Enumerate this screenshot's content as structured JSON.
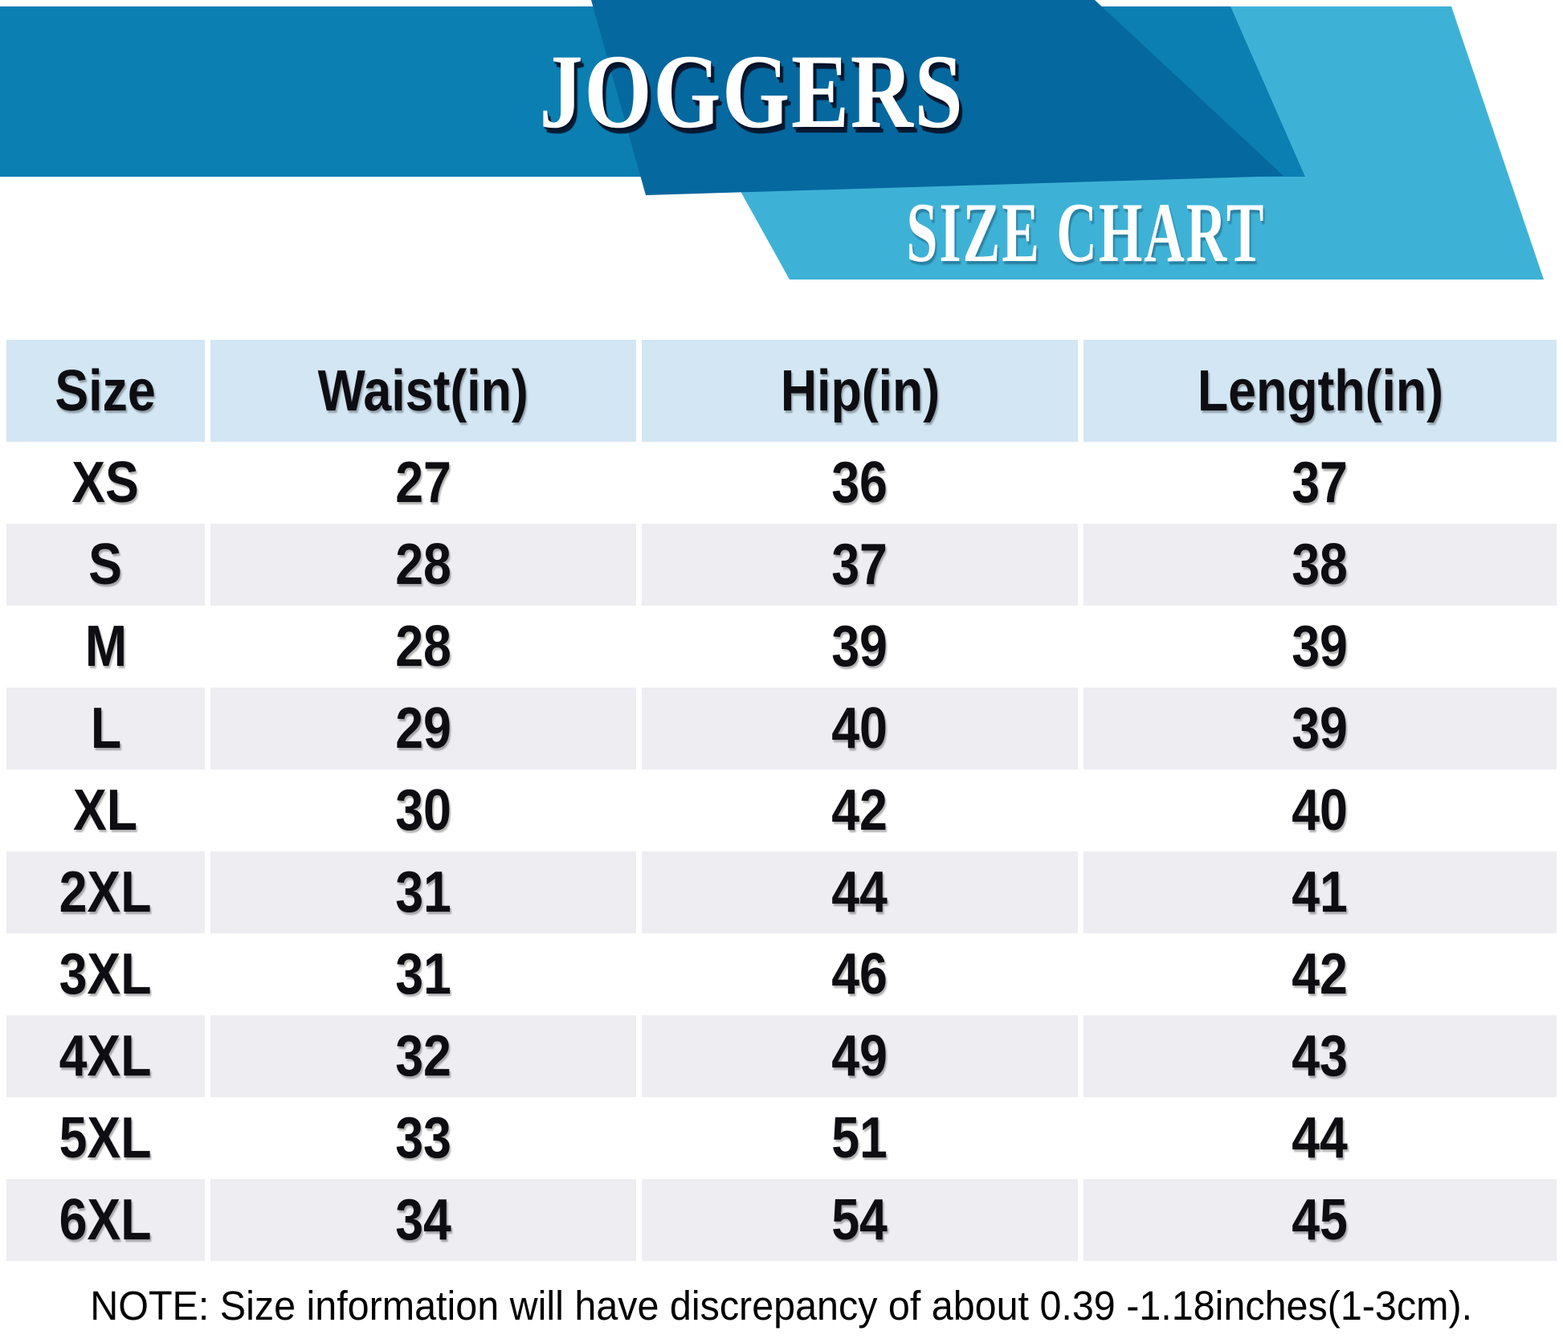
{
  "page": {
    "title": "JOGGERS",
    "subtitle": "SIZE CHART"
  },
  "note": {
    "text": "NOTE: Size information will have discrepancy of about 0.39 -1.18inches(1-3cm)."
  },
  "colors": {
    "band_blue": "#0b7fb1",
    "dark_blue": "#05689f",
    "light_blue": "#3eb2d6",
    "header_cell_blue": "#d3e6f3",
    "row_gray": "#ededf2",
    "title_white": "#ffffff",
    "text_black": "#0d0d12"
  },
  "chart_data": {
    "type": "table",
    "title": "JOGGERS",
    "subtitle": "SIZE CHART",
    "columns": [
      "Size",
      "Waist(in)",
      "Hip(in)",
      "Length(in)"
    ],
    "rows": [
      [
        "XS",
        "27",
        "36",
        "37"
      ],
      [
        "S",
        "28",
        "37",
        "38"
      ],
      [
        "M",
        "28",
        "39",
        "39"
      ],
      [
        "L",
        "29",
        "40",
        "39"
      ],
      [
        "XL",
        "30",
        "42",
        "40"
      ],
      [
        "2XL",
        "31",
        "44",
        "41"
      ],
      [
        "3XL",
        "31",
        "46",
        "42"
      ],
      [
        "4XL",
        "32",
        "49",
        "43"
      ],
      [
        "5XL",
        "33",
        "51",
        "44"
      ],
      [
        "6XL",
        "34",
        "54",
        "45"
      ]
    ],
    "note": "NOTE: Size information will have discrepancy of about 0.39 -1.18inches(1-3cm).",
    "layout": {
      "zebra_striping": "rows S, L, 2XL, 4XL, 6XL shaded gray",
      "header_row_shaded": true,
      "grid": "off",
      "legend_position": "none"
    }
  }
}
